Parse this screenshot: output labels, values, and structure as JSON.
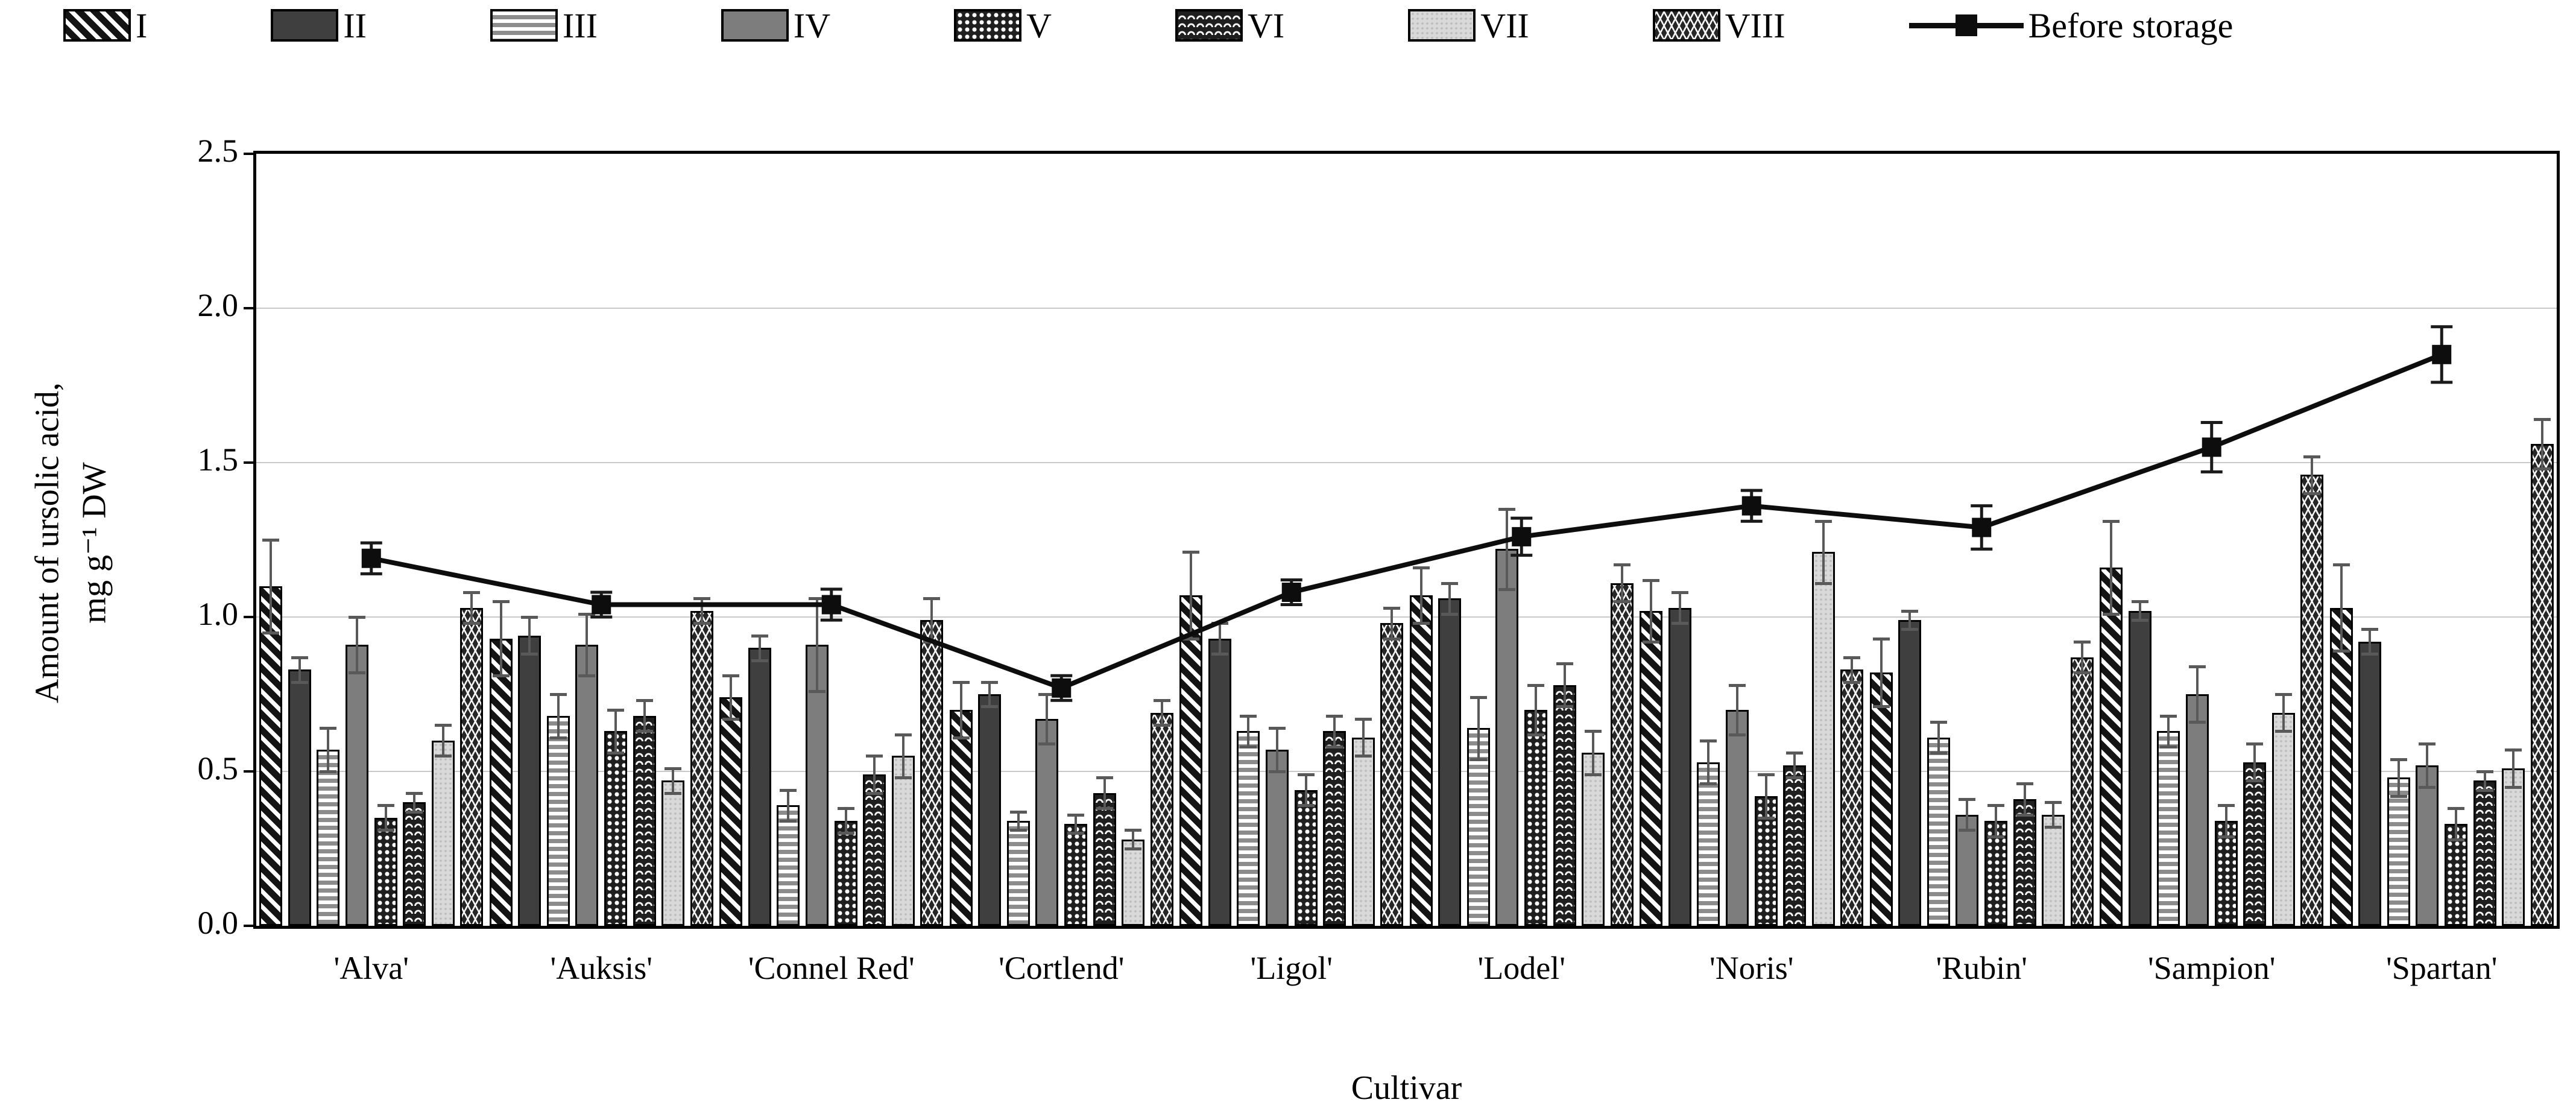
{
  "legend": {
    "line_item_label": "Before storage"
  },
  "axes": {
    "x_title": "Cultivar",
    "y_title_line1": "Amount of ursolic acid,",
    "y_title_line2": "mg g⁻¹ DW"
  },
  "colors": {
    "foreground": "#000000",
    "gridline": "#c8c8c8",
    "bar_error": "#595959",
    "line_series": "#0d0d0d"
  },
  "chart_data": {
    "type": "bar",
    "subtype": "grouped-bars-with-line-overlay",
    "title": "",
    "xlabel": "Cultivar",
    "ylabel_line1": "Amount of ursolic acid,",
    "ylabel_line2": "mg g⁻¹ DW",
    "ylim": [
      0,
      2.5
    ],
    "yticks": [
      "0.0",
      "0.5",
      "1.0",
      "1.5",
      "2.0",
      "2.5"
    ],
    "grid_values": [
      0.5,
      1.0,
      1.5,
      2.0
    ],
    "grid": "horizontal, light gray",
    "legend_position": "top",
    "categories": [
      "'Alva'",
      "'Auksis'",
      "'Connel Red'",
      "'Cortlend'",
      "'Ligol'",
      "'Lodel'",
      "'Noris'",
      "'Rubin'",
      "'Sampion'",
      "'Spartan'"
    ],
    "series": [
      {
        "name": "I",
        "pattern": "diagonal-stripes",
        "values": [
          1.1,
          0.93,
          0.74,
          0.7,
          1.07,
          1.07,
          1.02,
          0.82,
          1.16,
          1.03
        ],
        "errors": [
          0.15,
          0.12,
          0.07,
          0.09,
          0.14,
          0.09,
          0.1,
          0.11,
          0.15,
          0.14
        ]
      },
      {
        "name": "II",
        "pattern": "dark-solid",
        "values": [
          0.83,
          0.94,
          0.9,
          0.75,
          0.93,
          1.06,
          1.03,
          0.99,
          1.02,
          0.92
        ],
        "errors": [
          0.04,
          0.06,
          0.04,
          0.04,
          0.05,
          0.05,
          0.05,
          0.03,
          0.03,
          0.04
        ]
      },
      {
        "name": "III",
        "pattern": "horizontal-stripes",
        "values": [
          0.57,
          0.68,
          0.39,
          0.34,
          0.63,
          0.64,
          0.53,
          0.61,
          0.63,
          0.48
        ],
        "errors": [
          0.07,
          0.07,
          0.05,
          0.03,
          0.05,
          0.1,
          0.07,
          0.05,
          0.05,
          0.06
        ]
      },
      {
        "name": "IV",
        "pattern": "gray-solid",
        "values": [
          0.91,
          0.91,
          0.91,
          0.67,
          0.57,
          1.22,
          0.7,
          0.36,
          0.75,
          0.52
        ],
        "errors": [
          0.09,
          0.1,
          0.15,
          0.08,
          0.07,
          0.13,
          0.08,
          0.05,
          0.09,
          0.07
        ]
      },
      {
        "name": "V",
        "pattern": "dots-on-dark",
        "values": [
          0.35,
          0.63,
          0.34,
          0.33,
          0.44,
          0.7,
          0.42,
          0.34,
          0.34,
          0.33
        ],
        "errors": [
          0.04,
          0.07,
          0.04,
          0.03,
          0.05,
          0.08,
          0.07,
          0.05,
          0.05,
          0.05
        ]
      },
      {
        "name": "VI",
        "pattern": "chevrons-on-dark",
        "values": [
          0.4,
          0.68,
          0.49,
          0.43,
          0.63,
          0.78,
          0.52,
          0.41,
          0.53,
          0.47
        ],
        "errors": [
          0.03,
          0.05,
          0.06,
          0.05,
          0.05,
          0.07,
          0.04,
          0.05,
          0.06,
          0.03
        ]
      },
      {
        "name": "VII",
        "pattern": "light-dotted",
        "values": [
          0.6,
          0.47,
          0.55,
          0.28,
          0.61,
          0.56,
          1.21,
          0.36,
          0.69,
          0.51
        ],
        "errors": [
          0.05,
          0.04,
          0.07,
          0.03,
          0.06,
          0.07,
          0.1,
          0.04,
          0.06,
          0.06
        ]
      },
      {
        "name": "VIII",
        "pattern": "diamond-lattice",
        "values": [
          1.03,
          1.02,
          0.99,
          0.69,
          0.98,
          1.11,
          0.83,
          0.87,
          1.46,
          1.56
        ],
        "errors": [
          0.05,
          0.04,
          0.07,
          0.04,
          0.05,
          0.06,
          0.04,
          0.05,
          0.06,
          0.08
        ]
      }
    ],
    "line_series": {
      "name": "Before storage",
      "marker": "filled-square",
      "values": [
        1.19,
        1.04,
        1.04,
        0.77,
        1.08,
        1.26,
        1.36,
        1.29,
        1.55,
        1.85
      ],
      "errors": [
        0.05,
        0.04,
        0.05,
        0.04,
        0.04,
        0.06,
        0.05,
        0.07,
        0.08,
        0.09
      ]
    }
  }
}
